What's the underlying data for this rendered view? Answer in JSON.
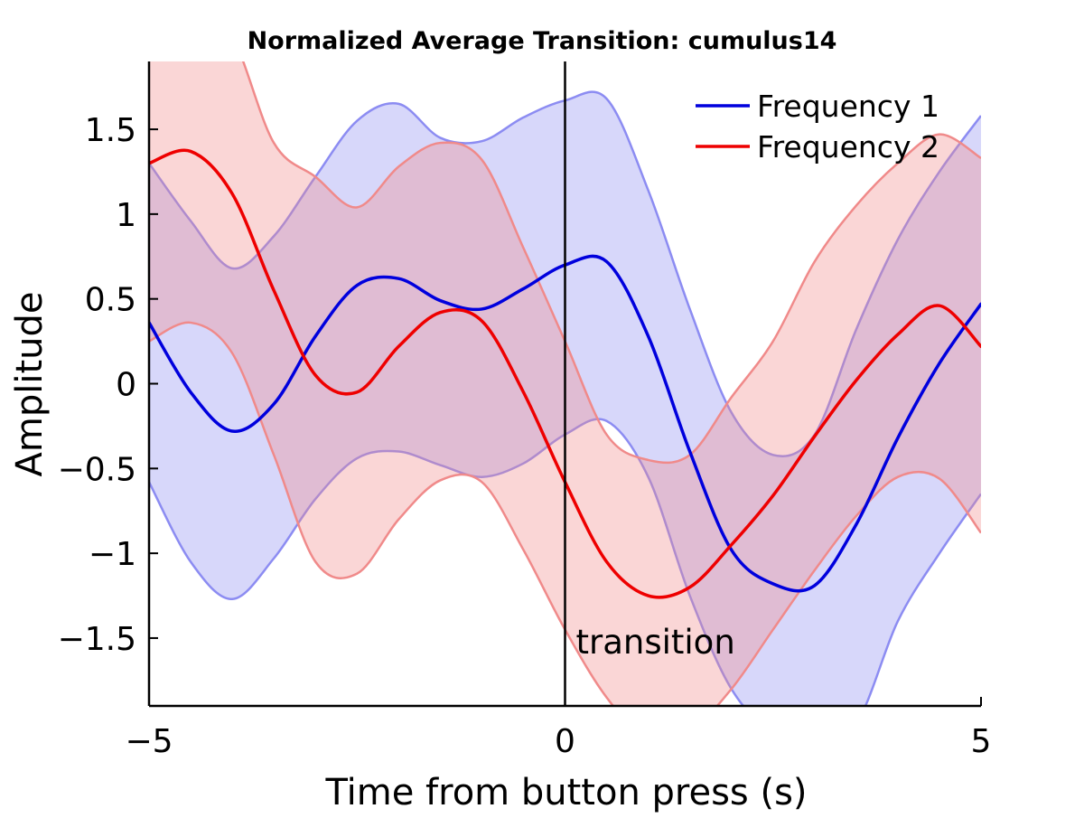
{
  "chart_data": {
    "type": "line",
    "title": "Normalized Average Transition: cumulus14",
    "xlabel": "Time from button press (s)",
    "ylabel": "Amplitude",
    "xlim": [
      -5,
      5
    ],
    "ylim": [
      -1.9,
      1.9
    ],
    "grid": false,
    "legend_position": "top-right",
    "x_ticks": [
      -5,
      0,
      5
    ],
    "x_tick_labels": [
      "−5",
      "0",
      "5"
    ],
    "y_ticks": [
      1.5,
      1,
      0.5,
      0,
      -0.5,
      -1,
      -1.5
    ],
    "y_tick_labels": [
      "1.5",
      "1",
      "0.5",
      "0",
      "−0.5",
      "−1",
      "−1.5"
    ],
    "vertical_marker": {
      "x": 0,
      "label": "transition"
    },
    "x": [
      -5,
      -4.5,
      -4,
      -3.5,
      -3,
      -2.5,
      -2,
      -1.5,
      -1,
      -0.5,
      0,
      0.5,
      1,
      1.5,
      2,
      2.5,
      3,
      3.5,
      4,
      4.5,
      5
    ],
    "series": [
      {
        "name": "Frequency 1",
        "color": "#0000dd",
        "band_color": "#8c8cf2",
        "values": [
          0.36,
          -0.05,
          -0.28,
          -0.12,
          0.28,
          0.58,
          0.62,
          0.49,
          0.44,
          0.56,
          0.7,
          0.72,
          0.28,
          -0.4,
          -0.98,
          -1.18,
          -1.19,
          -0.83,
          -0.32,
          0.12,
          0.47
        ],
        "upper": [
          1.3,
          0.96,
          0.68,
          0.87,
          1.22,
          1.55,
          1.65,
          1.45,
          1.43,
          1.57,
          1.67,
          1.68,
          1.14,
          0.44,
          -0.17,
          -0.42,
          -0.3,
          0.32,
          0.85,
          1.25,
          1.58
        ],
        "lower": [
          -0.58,
          -1.05,
          -1.27,
          -1.03,
          -0.68,
          -0.44,
          -0.4,
          -0.48,
          -0.55,
          -0.47,
          -0.3,
          -0.22,
          -0.55,
          -1.25,
          -1.8,
          -2.05,
          -2.05,
          -2.0,
          -1.4,
          -1.0,
          -0.65
        ]
      },
      {
        "name": "Frequency 2",
        "color": "#ee0000",
        "band_color": "#f08a8a",
        "values": [
          1.3,
          1.37,
          1.12,
          0.55,
          0.05,
          -0.05,
          0.22,
          0.42,
          0.37,
          -0.05,
          -0.58,
          -1.05,
          -1.25,
          -1.2,
          -0.95,
          -0.66,
          -0.31,
          0.02,
          0.29,
          0.46,
          0.22
        ],
        "upper": [
          2.25,
          2.3,
          2.05,
          1.42,
          1.22,
          1.04,
          1.28,
          1.42,
          1.32,
          0.8,
          0.25,
          -0.3,
          -0.45,
          -0.42,
          -0.08,
          0.25,
          0.72,
          1.05,
          1.3,
          1.47,
          1.33
        ],
        "lower": [
          0.25,
          0.36,
          0.18,
          -0.42,
          -1.05,
          -1.12,
          -0.8,
          -0.57,
          -0.58,
          -0.98,
          -1.45,
          -1.85,
          -2.1,
          -2.05,
          -1.8,
          -1.45,
          -1.1,
          -0.78,
          -0.55,
          -0.56,
          -0.88
        ]
      }
    ]
  }
}
